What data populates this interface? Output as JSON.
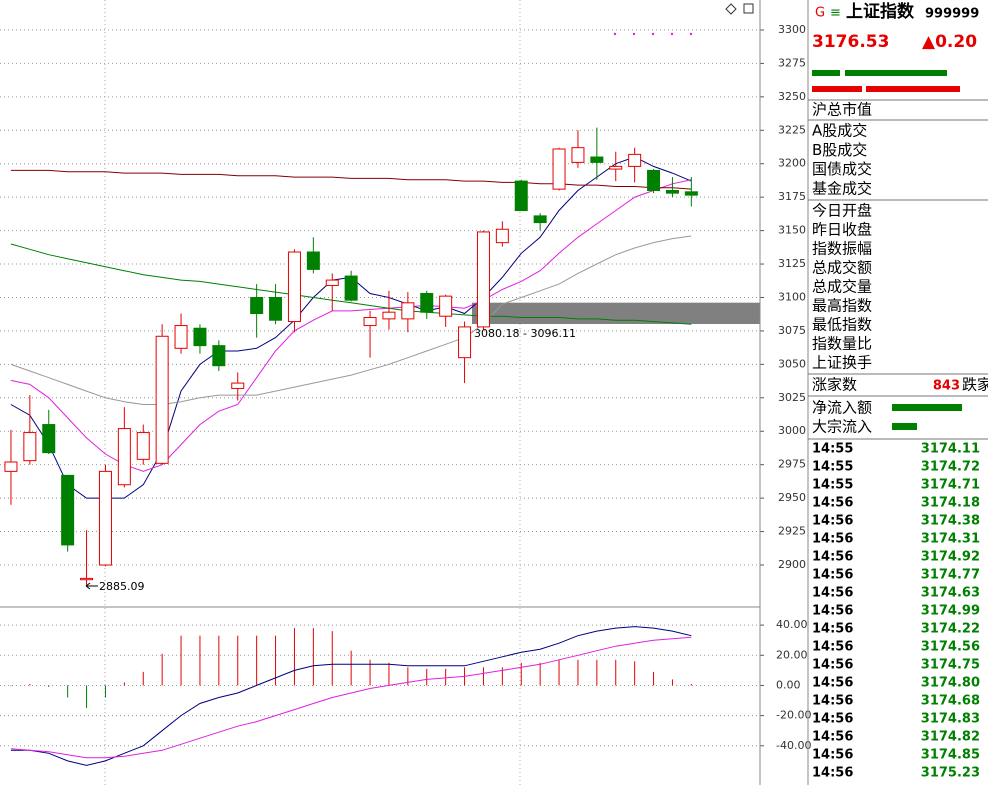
{
  "chart_data": [
    {
      "type": "candlestick",
      "open": [
        2970,
        2978,
        3005,
        2967,
        2889,
        2900,
        2960,
        2979,
        2976,
        3062,
        3077,
        3064,
        3032,
        3100,
        3100,
        3082,
        3134,
        3109,
        3116,
        3079,
        3084,
        3084,
        3103,
        3086,
        3055,
        3078,
        3141,
        3187,
        3161,
        3181,
        3201,
        3205,
        3196,
        3198,
        3195,
        3180,
        3179
      ],
      "close": [
        2977,
        2999,
        2984,
        2915,
        2890,
        2970,
        3002,
        2999,
        3071,
        3079,
        3064,
        3049,
        3036,
        3088,
        3083,
        3134,
        3121,
        3113,
        3098,
        3085,
        3089,
        3096,
        3089,
        3101,
        3078,
        3149,
        3151,
        3165,
        3156,
        3211,
        3212,
        3201,
        3198,
        3207,
        3180,
        3178,
        3176.53
      ],
      "high": [
        3001,
        3027,
        3016,
        2967,
        2926,
        2975,
        3018,
        3005,
        3080,
        3088,
        3080,
        3068,
        3044,
        3110,
        3110,
        3136,
        3145,
        3118,
        3120,
        3090,
        3105,
        3104,
        3105,
        3102,
        3082,
        3150,
        3157,
        3188,
        3163,
        3212,
        3225,
        3227,
        3209,
        3212,
        3196,
        3190,
        3190
      ],
      "low": [
        2945,
        2975,
        2983,
        2910,
        2885.09,
        2899,
        2958,
        2975,
        2975,
        3058,
        3058,
        3045,
        3023,
        3070,
        3080,
        3074,
        3118,
        3090,
        3097,
        3055,
        3076,
        3074,
        3084,
        3078,
        3036,
        3076,
        3138,
        3165,
        3150,
        3180,
        3197,
        3188,
        3187,
        3186,
        3178,
        3175,
        3168
      ],
      "up_color": "#e60000",
      "down_color": "#008000",
      "lines": [
        {
          "color": "#000080",
          "values": [
            3020,
            3012,
            2990,
            2960,
            2950,
            2950,
            2950,
            2960,
            2985,
            3030,
            3050,
            3060,
            3060,
            3062,
            3070,
            3083,
            3100,
            3113,
            3115,
            3103,
            3100,
            3095,
            3090,
            3093,
            3088,
            3100,
            3115,
            3133,
            3145,
            3165,
            3180,
            3190,
            3200,
            3205,
            3198,
            3193,
            3187
          ]
        },
        {
          "color": "#e020e0",
          "values": [
            3038,
            3035,
            3025,
            3010,
            2995,
            2983,
            2975,
            2970,
            2975,
            2990,
            3005,
            3015,
            3020,
            3040,
            3060,
            3075,
            3083,
            3090,
            3090,
            3091,
            3092,
            3093,
            3094,
            3093,
            3092,
            3098,
            3106,
            3112,
            3120,
            3133,
            3145,
            3155,
            3165,
            3175,
            3180,
            3185,
            3188
          ]
        },
        {
          "color": "#999999",
          "values": [
            3050,
            3045,
            3040,
            3035,
            3030,
            3025,
            3022,
            3020,
            3020,
            3022,
            3025,
            3027,
            3027,
            3027,
            3030,
            3033,
            3036,
            3039,
            3042,
            3046,
            3050,
            3055,
            3060,
            3065,
            3070,
            3080,
            3095,
            3100,
            3105,
            3110,
            3118,
            3125,
            3132,
            3137,
            3141,
            3144,
            3146
          ]
        },
        {
          "color": "#008000",
          "values": [
            3140,
            3136,
            3132,
            3129,
            3126,
            3123,
            3120,
            3117,
            3115,
            3113,
            3112,
            3110,
            3108,
            3106,
            3104,
            3102,
            3100,
            3098,
            3096,
            3094,
            3092,
            3090,
            3089,
            3088,
            3087,
            3086,
            3086,
            3085,
            3085,
            3085,
            3084,
            3084,
            3083,
            3083,
            3082,
            3081,
            3080
          ]
        },
        {
          "color": "#800000",
          "values": [
            3195,
            3195,
            3195,
            3194,
            3194,
            3194,
            3193,
            3193,
            3193,
            3192,
            3192,
            3192,
            3191,
            3191,
            3191,
            3190,
            3190,
            3190,
            3189,
            3189,
            3189,
            3188,
            3188,
            3188,
            3187,
            3187,
            3186,
            3186,
            3185,
            3185,
            3184,
            3184,
            3183,
            3183,
            3182,
            3182,
            3181
          ]
        }
      ],
      "zone": {
        "low": 3080.18,
        "high": 3096.11,
        "label": "3080.18 - 3096.11",
        "color": "#808080"
      },
      "ylim": [
        2868.6,
        3322.4
      ],
      "yticks": [
        2900,
        2925,
        2950,
        2975,
        3000,
        3025,
        3050,
        3075,
        3100,
        3125,
        3150,
        3175,
        3200,
        3225,
        3250,
        3275,
        3300
      ],
      "grid": true
    },
    {
      "type": "macd",
      "values": [
        -0.5,
        1,
        -1,
        -8,
        -15,
        -8,
        2,
        9,
        21,
        33,
        33,
        33,
        33,
        33,
        33,
        38,
        38,
        36,
        23,
        17,
        15,
        12,
        11,
        11,
        12,
        12,
        12,
        15,
        15,
        17,
        17,
        17,
        17,
        16,
        9,
        4,
        1
      ],
      "up_color": "#e60000",
      "down_color": "#008000",
      "lines": [
        {
          "color": "#000080",
          "values": [
            -43,
            -43,
            -45,
            -50,
            -53,
            -50,
            -45,
            -40,
            -30,
            -20,
            -12,
            -8,
            -5,
            0,
            5,
            10,
            13,
            14,
            14,
            14,
            14,
            13,
            13,
            13,
            13,
            16,
            19,
            22,
            24,
            28,
            33,
            36,
            38,
            39,
            38,
            36,
            33
          ]
        },
        {
          "color": "#e020e0",
          "values": [
            -42,
            -43,
            -44,
            -46,
            -48,
            -48,
            -47,
            -45,
            -43,
            -39,
            -35,
            -31,
            -27,
            -24,
            -20,
            -16,
            -12,
            -8,
            -5,
            -2,
            0,
            2,
            4,
            5,
            6,
            8,
            10,
            12,
            14,
            17,
            20,
            23,
            26,
            28,
            30,
            31,
            32
          ]
        }
      ],
      "ylim": [
        -66,
        52
      ],
      "yticks": [
        {
          "value": -40,
          "label": "-40.00"
        },
        {
          "value": -20,
          "label": "-20.00"
        },
        {
          "value": 0,
          "label": "0.00"
        },
        {
          "value": 20,
          "label": "20.00"
        },
        {
          "value": 40,
          "label": "40.00"
        }
      ],
      "grid": true
    }
  ],
  "panel": {
    "logo": "G",
    "menu": "≡",
    "name": "上证指数",
    "code": "999999",
    "price": "3176.53",
    "change": "▲0.20",
    "market_cap": "沪总市值",
    "turnover": [
      "A股成交",
      "B股成交",
      "国债成交",
      "基金成交"
    ],
    "stats": [
      "今日开盘",
      "昨日收盘",
      "指数振幅",
      "总成交额",
      "总成交量",
      "最高指数",
      "最低指数",
      "指数量比",
      "上证换手"
    ],
    "advance_label": "涨家数",
    "advance": 843,
    "decline_label": "跌家",
    "flows": [
      "净流入额",
      "大宗流入"
    ],
    "ticks": [
      {
        "time": "14:55",
        "price": "3174.11"
      },
      {
        "time": "14:55",
        "price": "3174.72"
      },
      {
        "time": "14:55",
        "price": "3174.71"
      },
      {
        "time": "14:56",
        "price": "3174.18"
      },
      {
        "time": "14:56",
        "price": "3174.38"
      },
      {
        "time": "14:56",
        "price": "3174.31"
      },
      {
        "time": "14:56",
        "price": "3174.92"
      },
      {
        "time": "14:56",
        "price": "3174.77"
      },
      {
        "time": "14:56",
        "price": "3174.63"
      },
      {
        "time": "14:56",
        "price": "3174.99"
      },
      {
        "time": "14:56",
        "price": "3174.22"
      },
      {
        "time": "14:56",
        "price": "3174.56"
      },
      {
        "time": "14:56",
        "price": "3174.75"
      },
      {
        "time": "14:56",
        "price": "3174.80"
      },
      {
        "time": "14:56",
        "price": "3174.68"
      },
      {
        "time": "14:56",
        "price": "3174.83"
      },
      {
        "time": "14:56",
        "price": "3174.82"
      },
      {
        "time": "14:56",
        "price": "3174.85"
      },
      {
        "time": "14:56",
        "price": "3175.23"
      }
    ]
  }
}
